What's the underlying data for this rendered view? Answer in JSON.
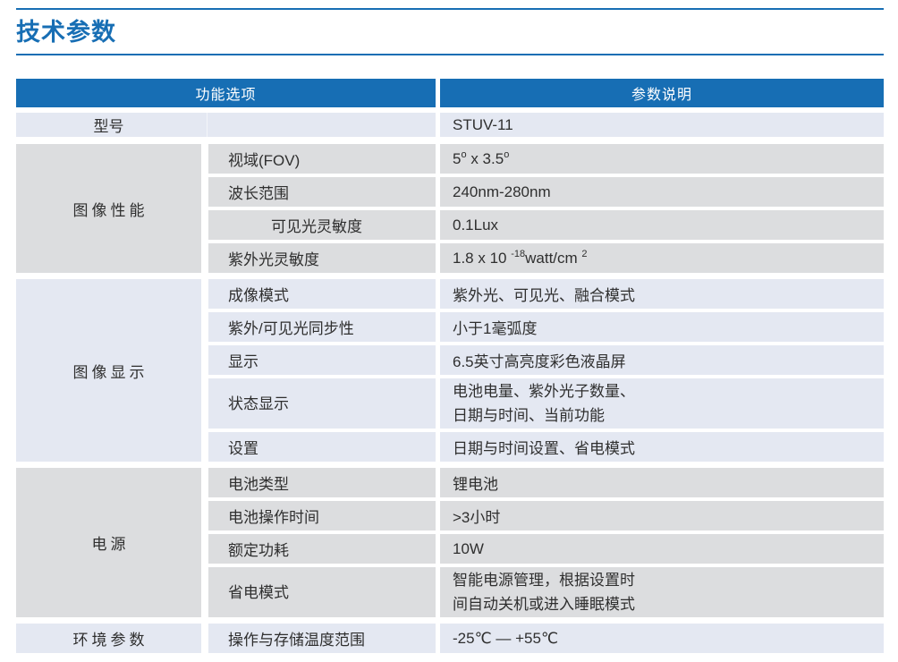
{
  "page": {
    "title": "技术参数"
  },
  "colors": {
    "accent_blue": "#176eb4",
    "section_gray": "#dcdddf",
    "section_light_blue": "#e4e8f2",
    "header_text": "#ffffff",
    "body_text": "#2f2f2f"
  },
  "table": {
    "header": {
      "col1": "功能选项",
      "col2": "参数说明"
    },
    "model_row": {
      "label": "型号",
      "value": "STUV-11"
    },
    "sections": [
      {
        "group": "图像性能",
        "rows": [
          {
            "label": "视域(FOV)",
            "value_parts": {
              "b1": "5",
              "s1": "o",
              "b2": " x 3.5",
              "s2": "o"
            }
          },
          {
            "label": "波长范围",
            "value": "240nm-280nm"
          },
          {
            "label": "可见光灵敏度",
            "value": "0.1Lux"
          },
          {
            "label": "紫外光灵敏度",
            "value_parts": {
              "b1": "1.8 x 10 ",
              "s1": "-18",
              "b2": "watt/cm ",
              "s2": "2"
            }
          }
        ]
      },
      {
        "group": "图像显示",
        "rows": [
          {
            "label": "成像模式",
            "value": "紫外光、可见光、融合模式"
          },
          {
            "label": "紫外/可见光同步性",
            "value": "小于1毫弧度"
          },
          {
            "label": "显示",
            "value": "6.5英寸高亮度彩色液晶屏"
          },
          {
            "label": "状态显示",
            "value_line1": "电池电量、紫外光子数量、",
            "value_line2": "日期与时间、当前功能"
          },
          {
            "label": "设置",
            "value": "日期与时间设置、省电模式"
          }
        ]
      },
      {
        "group": "电源",
        "rows": [
          {
            "label": "电池类型",
            "value": "锂电池"
          },
          {
            "label": "电池操作时间",
            "value": ">3小时"
          },
          {
            "label": "额定功耗",
            "value": "10W"
          },
          {
            "label": "省电模式",
            "value_line1": "智能电源管理，根据设置时",
            "value_line2": "间自动关机或进入睡眠模式"
          }
        ]
      },
      {
        "group": "环境参数",
        "rows": [
          {
            "label": "操作与存储温度范围",
            "value": "-25℃ — +55℃"
          }
        ]
      }
    ]
  }
}
